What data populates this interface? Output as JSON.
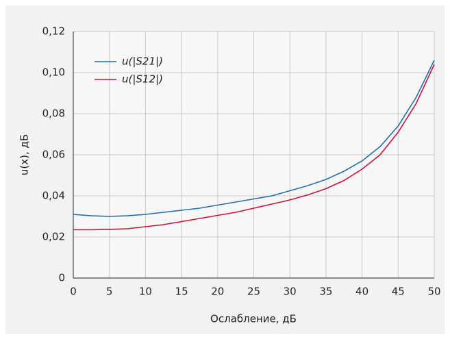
{
  "chart_data": {
    "type": "line",
    "x_label": "Ослабление, дБ",
    "y_label": "u(x), дБ",
    "x": [
      0,
      2.5,
      5,
      7.5,
      10,
      12.5,
      15,
      17.5,
      20,
      22.5,
      25,
      27.5,
      30,
      32.5,
      35,
      37.5,
      40,
      42.5,
      45,
      47.5,
      50
    ],
    "series": [
      {
        "name": "u(|S21|)",
        "color": "#1f6fb0",
        "values": [
          0.031,
          0.0303,
          0.03,
          0.0303,
          0.031,
          0.032,
          0.033,
          0.034,
          0.0355,
          0.037,
          0.0385,
          0.04,
          0.0425,
          0.045,
          0.048,
          0.052,
          0.057,
          0.064,
          0.074,
          0.088,
          0.106
        ]
      },
      {
        "name": "u(|S12|)",
        "color": "#d0103a",
        "values": [
          0.0235,
          0.0235,
          0.0237,
          0.024,
          0.025,
          0.026,
          0.0275,
          0.029,
          0.0305,
          0.032,
          0.034,
          0.036,
          0.038,
          0.0405,
          0.0435,
          0.0475,
          0.053,
          0.06,
          0.071,
          0.085,
          0.104
        ]
      }
    ],
    "xlim": [
      0,
      50
    ],
    "xticks": [
      0,
      5,
      10,
      15,
      20,
      25,
      30,
      35,
      40,
      45,
      50
    ],
    "ylim": [
      0,
      0.12
    ],
    "yticks": [
      0,
      {
        "value": 0.02,
        "label": "0,02"
      },
      {
        "value": 0.04,
        "label": "0,04"
      },
      {
        "value": 0.06,
        "label": "0,06"
      },
      {
        "value": 0.08,
        "label": "0,08"
      },
      {
        "value": 0.1,
        "label": "0,10"
      },
      {
        "value": 0.12,
        "label": "0,12"
      }
    ],
    "grid": true,
    "legend": "upper left"
  }
}
